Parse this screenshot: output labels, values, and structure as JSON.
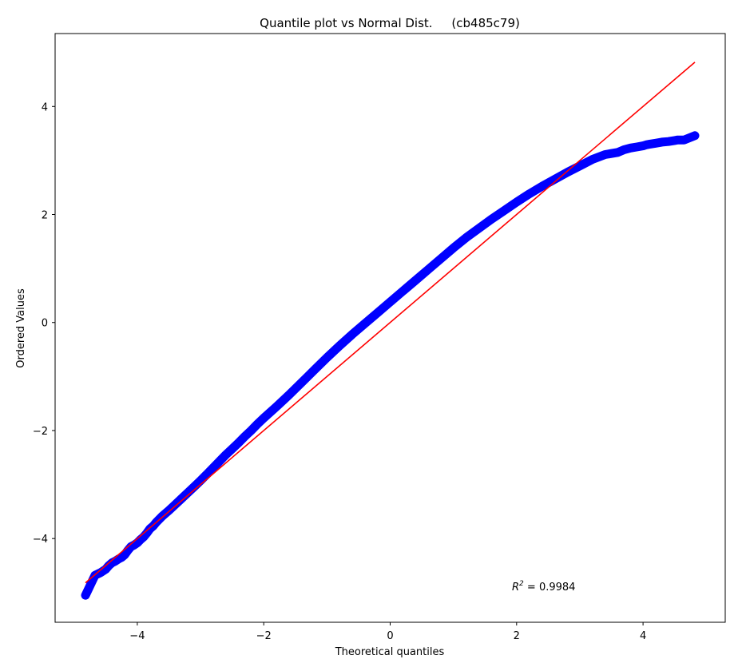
{
  "chart_data": {
    "type": "scatter",
    "title": "Quantile plot vs Normal Dist.     (cb485c79)",
    "xlabel": "Theoretical quantiles",
    "ylabel": "Ordered Values",
    "xlim": [
      -5.3,
      5.3
    ],
    "ylim": [
      -5.55,
      5.35
    ],
    "xticks": [
      -4,
      -2,
      0,
      2,
      4
    ],
    "xtick_labels": [
      "−4",
      "−2",
      "0",
      "2",
      "4"
    ],
    "yticks": [
      -4,
      -2,
      0,
      2,
      4
    ],
    "ytick_labels": [
      "−4",
      "−2",
      "0",
      "2",
      "4"
    ],
    "grid": false,
    "annotation": {
      "r2_label": "R",
      "r2_sup": "2",
      "r2_value": " = 0.9984"
    },
    "colors": {
      "points": "#0000ff",
      "fit_line": "#ff0000"
    },
    "series": [
      {
        "kind": "points",
        "x": [
          -4.82,
          -4.67,
          -4.58,
          -4.5,
          -4.45,
          -4.4,
          -4.35,
          -4.3,
          -4.25,
          -4.2,
          -4.15,
          -4.1,
          -4.05,
          -4.0,
          -3.95,
          -3.9,
          -3.85,
          -3.8,
          -3.75,
          -3.7,
          -3.6,
          -3.5,
          -3.4,
          -3.3,
          -3.2,
          -3.1,
          -3.0,
          -2.9,
          -2.8,
          -2.7,
          -2.6,
          -2.5,
          -2.4,
          -2.3,
          -2.2,
          -2.1,
          -2.0,
          -1.8,
          -1.6,
          -1.4,
          -1.2,
          -1.0,
          -0.8,
          -0.6,
          -0.4,
          -0.2,
          0.0,
          0.2,
          0.4,
          0.6,
          0.8,
          1.0,
          1.2,
          1.4,
          1.6,
          1.8,
          2.0,
          2.2,
          2.4,
          2.6,
          2.8,
          3.0,
          3.2,
          3.4,
          3.6,
          3.7,
          3.8,
          3.9,
          4.0,
          4.05,
          4.1,
          4.2,
          4.3,
          4.4,
          4.5,
          4.55,
          4.65,
          4.82
        ],
        "y": [
          -5.05,
          -4.68,
          -4.63,
          -4.57,
          -4.5,
          -4.45,
          -4.42,
          -4.38,
          -4.35,
          -4.3,
          -4.22,
          -4.15,
          -4.12,
          -4.08,
          -4.02,
          -3.97,
          -3.9,
          -3.82,
          -3.77,
          -3.7,
          -3.58,
          -3.48,
          -3.37,
          -3.26,
          -3.15,
          -3.04,
          -2.93,
          -2.81,
          -2.69,
          -2.57,
          -2.45,
          -2.34,
          -2.23,
          -2.11,
          -2.0,
          -1.88,
          -1.77,
          -1.56,
          -1.34,
          -1.11,
          -0.88,
          -0.65,
          -0.43,
          -0.22,
          -0.02,
          0.18,
          0.38,
          0.58,
          0.78,
          0.98,
          1.18,
          1.38,
          1.57,
          1.74,
          1.91,
          2.07,
          2.23,
          2.38,
          2.52,
          2.65,
          2.78,
          2.9,
          3.02,
          3.11,
          3.15,
          3.2,
          3.23,
          3.25,
          3.27,
          3.29,
          3.3,
          3.32,
          3.34,
          3.35,
          3.37,
          3.38,
          3.38,
          3.46
        ]
      },
      {
        "kind": "line",
        "x": [
          -4.82,
          4.82
        ],
        "y": [
          -4.82,
          4.82
        ]
      }
    ]
  }
}
